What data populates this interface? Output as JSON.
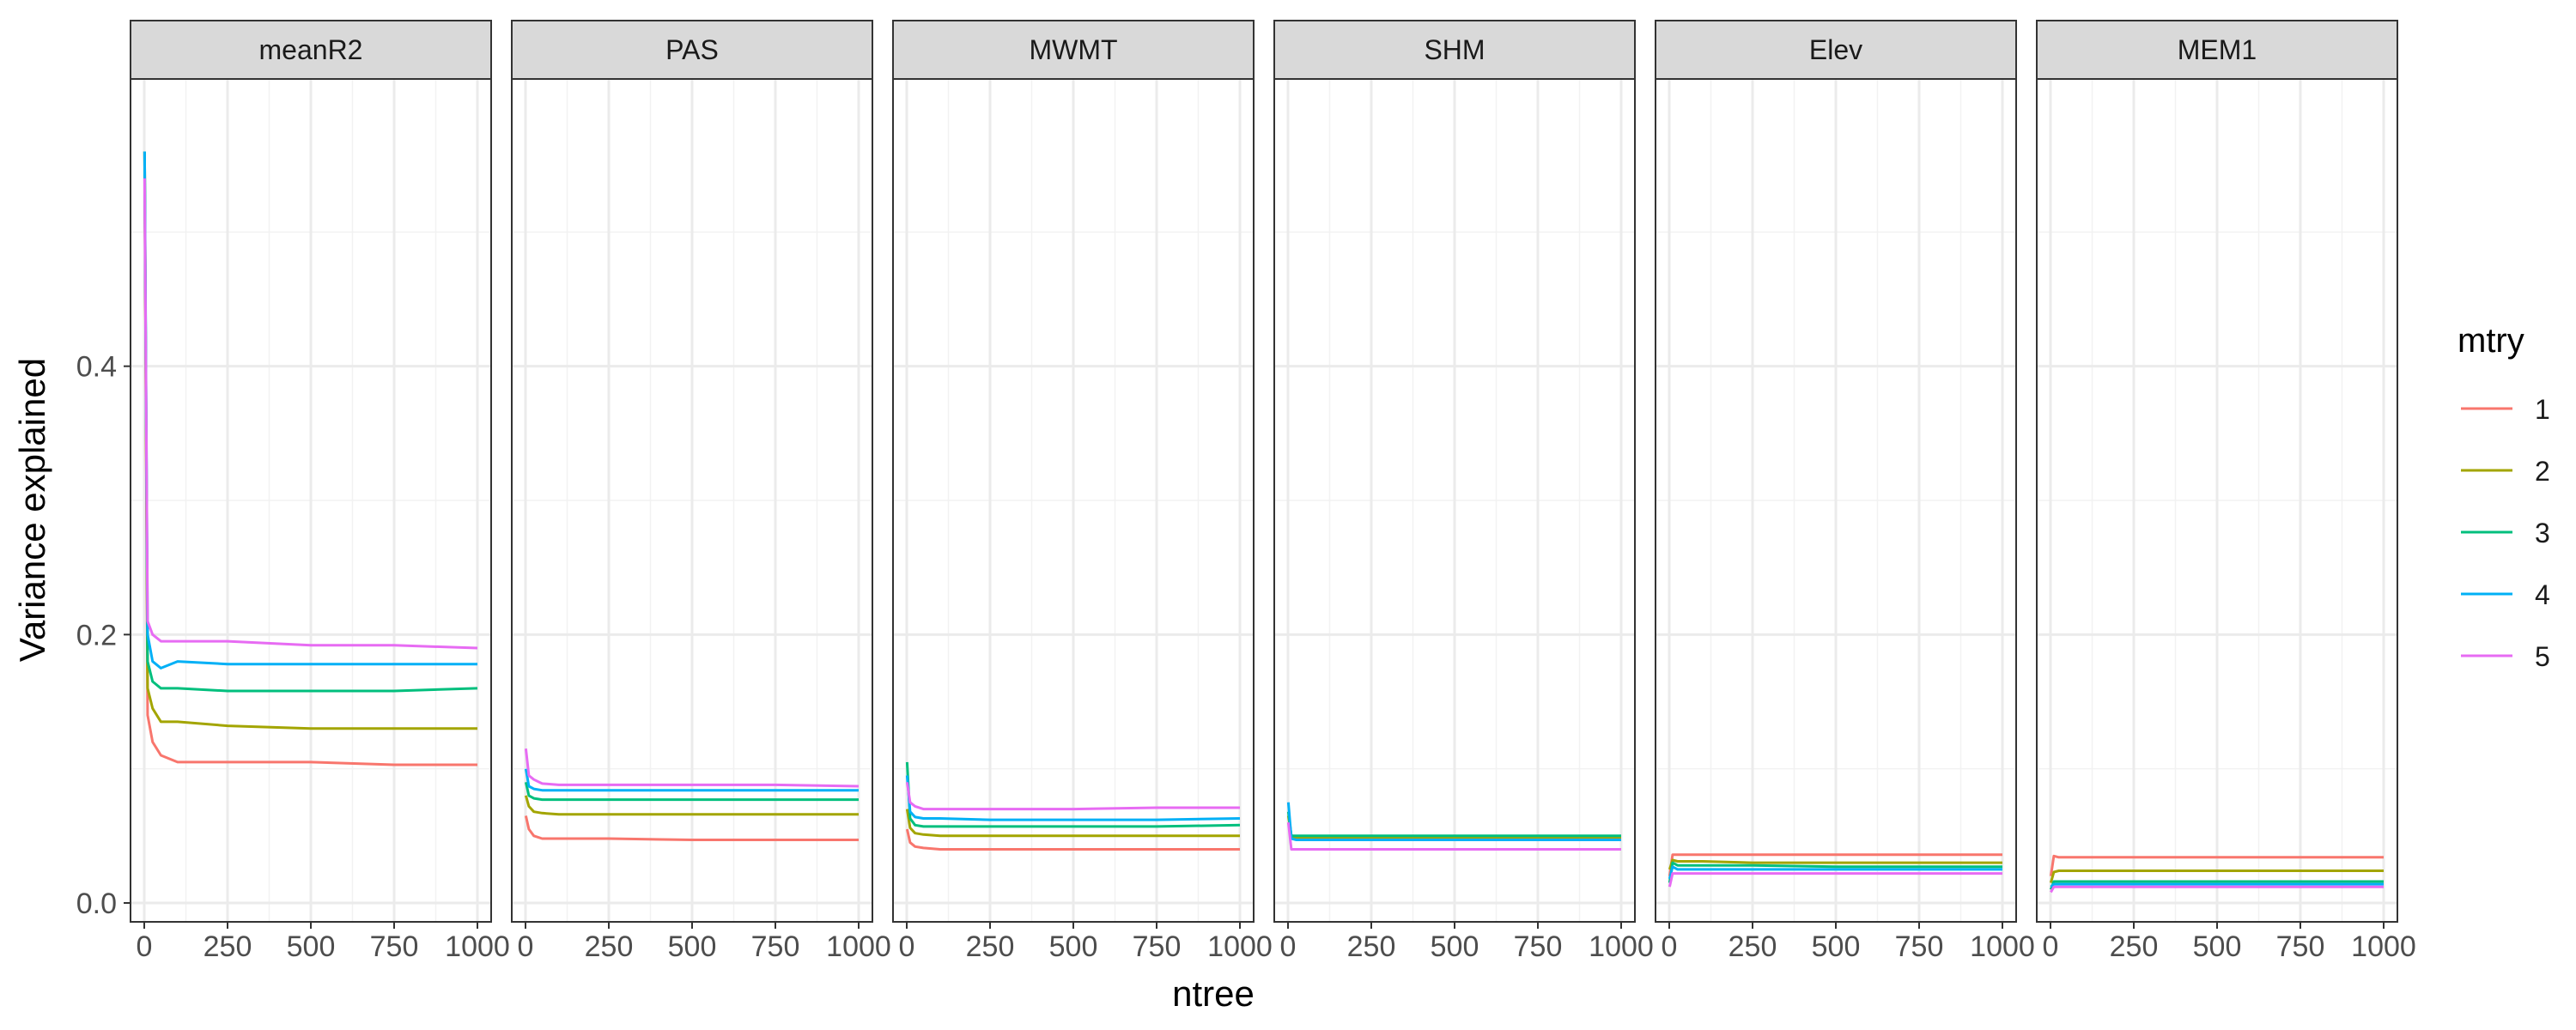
{
  "chart_data": {
    "type": "line",
    "xlabel": "ntree",
    "ylabel": "Variance explained",
    "xlim": [
      0,
      1000
    ],
    "ylim": [
      0,
      0.6
    ],
    "x_ticks": [
      0,
      250,
      500,
      750,
      1000
    ],
    "x_tick_labels": [
      "0",
      "250",
      "500",
      "750",
      "1000"
    ],
    "y_ticks": [
      0.0,
      0.2,
      0.4
    ],
    "y_tick_labels": [
      "0.0",
      "0.2",
      "0.4"
    ],
    "grid": true,
    "legend": {
      "title": "mtry",
      "placement": "right",
      "entries": [
        {
          "label": "1",
          "color": "#F8766D"
        },
        {
          "label": "2",
          "color": "#A3A500"
        },
        {
          "label": "3",
          "color": "#00BF7D"
        },
        {
          "label": "4",
          "color": "#00B0F6"
        },
        {
          "label": "5",
          "color": "#E76BF3"
        }
      ]
    },
    "x": [
      1,
      10,
      25,
      50,
      100,
      250,
      500,
      750,
      1000
    ],
    "panels": [
      {
        "title": "meanR2",
        "series": [
          {
            "name": "1",
            "values": [
              0.56,
              0.14,
              0.12,
              0.11,
              0.105,
              0.105,
              0.105,
              0.103,
              0.103
            ]
          },
          {
            "name": "2",
            "values": [
              0.56,
              0.16,
              0.145,
              0.135,
              0.135,
              0.132,
              0.13,
              0.13,
              0.13
            ]
          },
          {
            "name": "3",
            "values": [
              0.56,
              0.18,
              0.165,
              0.16,
              0.16,
              0.158,
              0.158,
              0.158,
              0.16
            ]
          },
          {
            "name": "4",
            "values": [
              0.56,
              0.2,
              0.18,
              0.175,
              0.18,
              0.178,
              0.178,
              0.178,
              0.178
            ]
          },
          {
            "name": "5",
            "values": [
              0.54,
              0.21,
              0.2,
              0.195,
              0.195,
              0.195,
              0.192,
              0.192,
              0.19
            ]
          }
        ]
      },
      {
        "title": "PAS",
        "series": [
          {
            "name": "1",
            "values": [
              0.065,
              0.055,
              0.05,
              0.048,
              0.048,
              0.048,
              0.047,
              0.047,
              0.047
            ]
          },
          {
            "name": "2",
            "values": [
              0.08,
              0.072,
              0.068,
              0.067,
              0.066,
              0.066,
              0.066,
              0.066,
              0.066
            ]
          },
          {
            "name": "3",
            "values": [
              0.09,
              0.08,
              0.078,
              0.077,
              0.077,
              0.077,
              0.077,
              0.077,
              0.077
            ]
          },
          {
            "name": "4",
            "values": [
              0.1,
              0.087,
              0.085,
              0.084,
              0.084,
              0.084,
              0.084,
              0.084,
              0.084
            ]
          },
          {
            "name": "5",
            "values": [
              0.115,
              0.095,
              0.092,
              0.089,
              0.088,
              0.088,
              0.088,
              0.088,
              0.087
            ]
          }
        ]
      },
      {
        "title": "MWMT",
        "series": [
          {
            "name": "1",
            "values": [
              0.055,
              0.045,
              0.042,
              0.041,
              0.04,
              0.04,
              0.04,
              0.04,
              0.04
            ]
          },
          {
            "name": "2",
            "values": [
              0.07,
              0.056,
              0.052,
              0.051,
              0.05,
              0.05,
              0.05,
              0.05,
              0.05
            ]
          },
          {
            "name": "3",
            "values": [
              0.105,
              0.063,
              0.058,
              0.057,
              0.057,
              0.057,
              0.057,
              0.057,
              0.058
            ]
          },
          {
            "name": "4",
            "values": [
              0.095,
              0.068,
              0.064,
              0.063,
              0.063,
              0.062,
              0.062,
              0.062,
              0.063
            ]
          },
          {
            "name": "5",
            "values": [
              0.09,
              0.075,
              0.072,
              0.07,
              0.07,
              0.07,
              0.07,
              0.071,
              0.071
            ]
          }
        ]
      },
      {
        "title": "SHM",
        "series": [
          {
            "name": "1",
            "values": [
              0.06,
              0.05,
              0.048,
              0.048,
              0.048,
              0.048,
              0.048,
              0.048,
              0.048
            ]
          },
          {
            "name": "2",
            "values": [
              0.065,
              0.05,
              0.049,
              0.049,
              0.049,
              0.049,
              0.049,
              0.049,
              0.049
            ]
          },
          {
            "name": "3",
            "values": [
              0.068,
              0.05,
              0.05,
              0.05,
              0.05,
              0.05,
              0.05,
              0.05,
              0.05
            ]
          },
          {
            "name": "4",
            "values": [
              0.075,
              0.048,
              0.047,
              0.047,
              0.047,
              0.047,
              0.047,
              0.047,
              0.047
            ]
          },
          {
            "name": "5",
            "values": [
              0.06,
              0.04,
              0.04,
              0.04,
              0.04,
              0.04,
              0.04,
              0.04,
              0.04
            ]
          }
        ]
      },
      {
        "title": "Elev",
        "series": [
          {
            "name": "1",
            "values": [
              0.02,
              0.036,
              0.036,
              0.036,
              0.036,
              0.036,
              0.036,
              0.036,
              0.036
            ]
          },
          {
            "name": "2",
            "values": [
              0.025,
              0.032,
              0.031,
              0.031,
              0.031,
              0.03,
              0.03,
              0.03,
              0.03
            ]
          },
          {
            "name": "3",
            "values": [
              0.015,
              0.03,
              0.028,
              0.028,
              0.028,
              0.028,
              0.027,
              0.027,
              0.027
            ]
          },
          {
            "name": "4",
            "values": [
              0.018,
              0.027,
              0.025,
              0.025,
              0.025,
              0.025,
              0.025,
              0.025,
              0.025
            ]
          },
          {
            "name": "5",
            "values": [
              0.012,
              0.022,
              0.022,
              0.022,
              0.022,
              0.022,
              0.022,
              0.022,
              0.022
            ]
          }
        ]
      },
      {
        "title": "MEM1",
        "series": [
          {
            "name": "1",
            "values": [
              0.02,
              0.035,
              0.034,
              0.034,
              0.034,
              0.034,
              0.034,
              0.034,
              0.034
            ]
          },
          {
            "name": "2",
            "values": [
              0.015,
              0.023,
              0.024,
              0.024,
              0.024,
              0.024,
              0.024,
              0.024,
              0.024
            ]
          },
          {
            "name": "3",
            "values": [
              0.01,
              0.016,
              0.016,
              0.016,
              0.016,
              0.016,
              0.016,
              0.016,
              0.016
            ]
          },
          {
            "name": "4",
            "values": [
              0.012,
              0.014,
              0.014,
              0.014,
              0.014,
              0.014,
              0.014,
              0.014,
              0.014
            ]
          },
          {
            "name": "5",
            "values": [
              0.008,
              0.012,
              0.012,
              0.012,
              0.012,
              0.012,
              0.012,
              0.012,
              0.012
            ]
          }
        ]
      }
    ]
  }
}
